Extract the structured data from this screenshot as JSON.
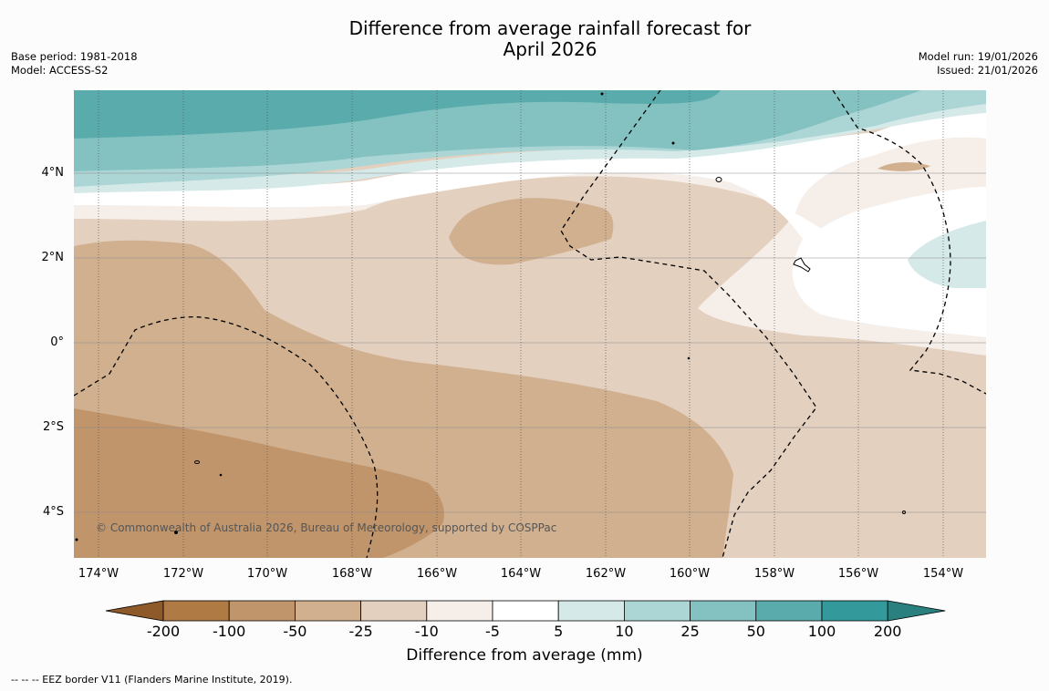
{
  "title_line1": "Difference from average rainfall forecast for",
  "title_line2": "April 2026",
  "base_period": "Base period: 1981-2018",
  "model": "Model: ACCESS-S2",
  "model_run": "Model run: 19/01/2026",
  "issued": "Issued: 21/01/2026",
  "lat_labels": [
    "4°N",
    "2°N",
    "0°",
    "2°S",
    "4°S"
  ],
  "lon_labels": [
    "174°W",
    "172°W",
    "170°W",
    "168°W",
    "166°W",
    "164°W",
    "162°W",
    "160°W",
    "158°W",
    "156°W",
    "154°W"
  ],
  "copyright": "© Commonwealth of Australia 2026, Bureau of Meteorology, supported by COSPPac",
  "colorbar": {
    "ticks": [
      "-200",
      "-100",
      "-50",
      "-25",
      "-10",
      "-5",
      "5",
      "10",
      "25",
      "50",
      "100",
      "200"
    ],
    "colors": [
      "#8e5a2a",
      "#b07a45",
      "#c0956b",
      "#d1b090",
      "#e3d0bf",
      "#f5eee9",
      "#ffffff",
      "#d4e9e8",
      "#acd6d5",
      "#84c2c1",
      "#5aacac",
      "#33999a",
      "#2a7f7f"
    ],
    "title": "Difference from average (mm)"
  },
  "footnote": "--  --  -- EEZ border V11 (Flanders Marine Institute, 2019)."
}
